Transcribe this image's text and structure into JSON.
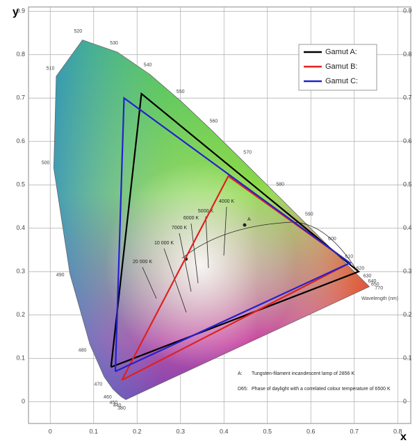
{
  "chart_data": {
    "type": "line",
    "x_label": "x",
    "y_label": "y",
    "xlim": [
      -0.05,
      0.83
    ],
    "ylim": [
      -0.05,
      0.91
    ],
    "xticks": [
      0,
      0.1,
      0.2,
      0.3,
      0.4,
      0.5,
      0.6,
      0.7,
      0.8
    ],
    "yticks": [
      0,
      0.1,
      0.2,
      0.3,
      0.4,
      0.5,
      0.6,
      0.7,
      0.8,
      0.9
    ],
    "grid": true,
    "legend": "upper right",
    "series": [
      {
        "name": "Gamut A:",
        "color": "#000000",
        "x": [
          0.14,
          0.21,
          0.71,
          0.14
        ],
        "values": [
          0.08,
          0.71,
          0.3,
          0.08
        ]
      },
      {
        "name": "Gamut B:",
        "color": "#e0201e",
        "x": [
          0.165,
          0.41,
          0.69,
          0.165
        ],
        "values": [
          0.05,
          0.52,
          0.32,
          0.05
        ]
      },
      {
        "name": "Gamut C:",
        "color": "#2222cc",
        "x": [
          0.15,
          0.17,
          0.69,
          0.15
        ],
        "values": [
          0.07,
          0.7,
          0.32,
          0.07
        ]
      }
    ],
    "spectral_locus": {
      "axis_label": "Wavelength (nm)",
      "labels": [
        "380",
        "440",
        "450",
        "460",
        "470",
        "480",
        "490",
        "500",
        "510",
        "520",
        "530",
        "540",
        "550",
        "560",
        "570",
        "580",
        "590",
        "600",
        "610",
        "620",
        "630",
        "640",
        "650",
        "770"
      ],
      "x": [
        0.1741,
        0.1644,
        0.1566,
        0.144,
        0.1241,
        0.0913,
        0.0454,
        0.0082,
        0.0139,
        0.0743,
        0.1547,
        0.2296,
        0.3016,
        0.3731,
        0.4441,
        0.5125,
        0.5752,
        0.627,
        0.6658,
        0.6915,
        0.7079,
        0.719,
        0.726,
        0.7347
      ],
      "y": [
        0.005,
        0.0109,
        0.0177,
        0.0297,
        0.0578,
        0.1327,
        0.295,
        0.5384,
        0.7502,
        0.8338,
        0.8059,
        0.7543,
        0.6923,
        0.6245,
        0.5547,
        0.4866,
        0.4242,
        0.3725,
        0.334,
        0.3083,
        0.292,
        0.2809,
        0.274,
        0.2653
      ]
    },
    "temperature_labels": [
      "20 000 K",
      "10 000 K",
      "7000 K",
      "6000 K",
      "5000 K",
      "4000 K"
    ],
    "point_a": "A",
    "notes": [
      {
        "key": "A:",
        "text": "Tungsten-filament incandescent lamp of 2856 K"
      },
      {
        "key": "D65:",
        "text": "Phase of daylight with a correlated colour temperature of 6500 K"
      }
    ]
  }
}
